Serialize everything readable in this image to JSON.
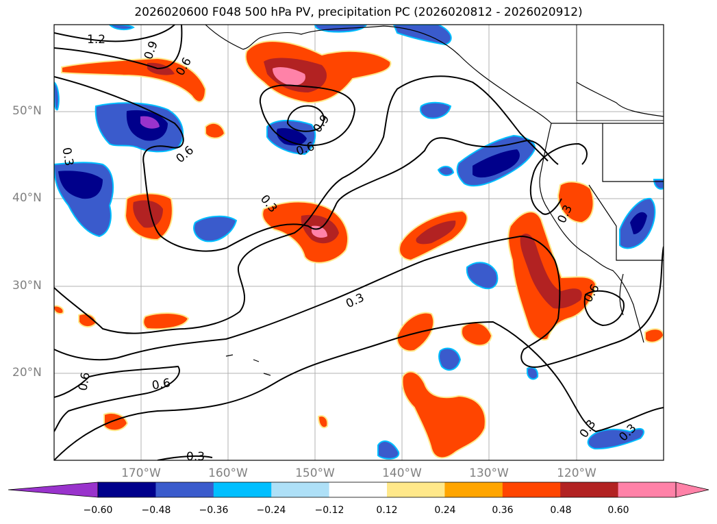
{
  "title": "2026020600 F048 500 hPa PV, precipitation PC (2026020812 - 2026020912)",
  "lat_labels": [
    {
      "text": "50°N",
      "lat": 50
    },
    {
      "text": "40°N",
      "lat": 40
    },
    {
      "text": "30°N",
      "lat": 30
    },
    {
      "text": "20°N",
      "lat": 20
    }
  ],
  "lon_labels": [
    {
      "text": "170°W",
      "lon": -170
    },
    {
      "text": "160°W",
      "lon": -160
    },
    {
      "text": "150°W",
      "lon": -150
    },
    {
      "text": "140°W",
      "lon": -140
    },
    {
      "text": "130°W",
      "lon": -130
    },
    {
      "text": "120°W",
      "lon": -120
    }
  ],
  "map_extent": {
    "lon_min": -180,
    "lon_max": -110,
    "lat_min": 10,
    "lat_max": 60
  },
  "contour_labels": [
    "1.2",
    "0.9",
    "0.6",
    "0.3",
    "0.6",
    "0.9",
    "0.6",
    "0.3",
    "0.3",
    "0.6",
    "0.6",
    "0.3",
    "0.6",
    "0.3",
    "0.3",
    "0.3"
  ],
  "colorbar": {
    "colors": [
      "#9933cc",
      "#00008b",
      "#3a5bcc",
      "#00bfff",
      "#aee0f7",
      "#ffffff",
      "#ffe88a",
      "#ffa500",
      "#ff4500",
      "#b22222",
      "#ff82a8",
      "#ff82a8"
    ],
    "ticks": [
      "−0.60",
      "−0.48",
      "−0.36",
      "−0.24",
      "−0.12",
      "0.12",
      "0.24",
      "0.36",
      "0.48",
      "0.60"
    ]
  }
}
